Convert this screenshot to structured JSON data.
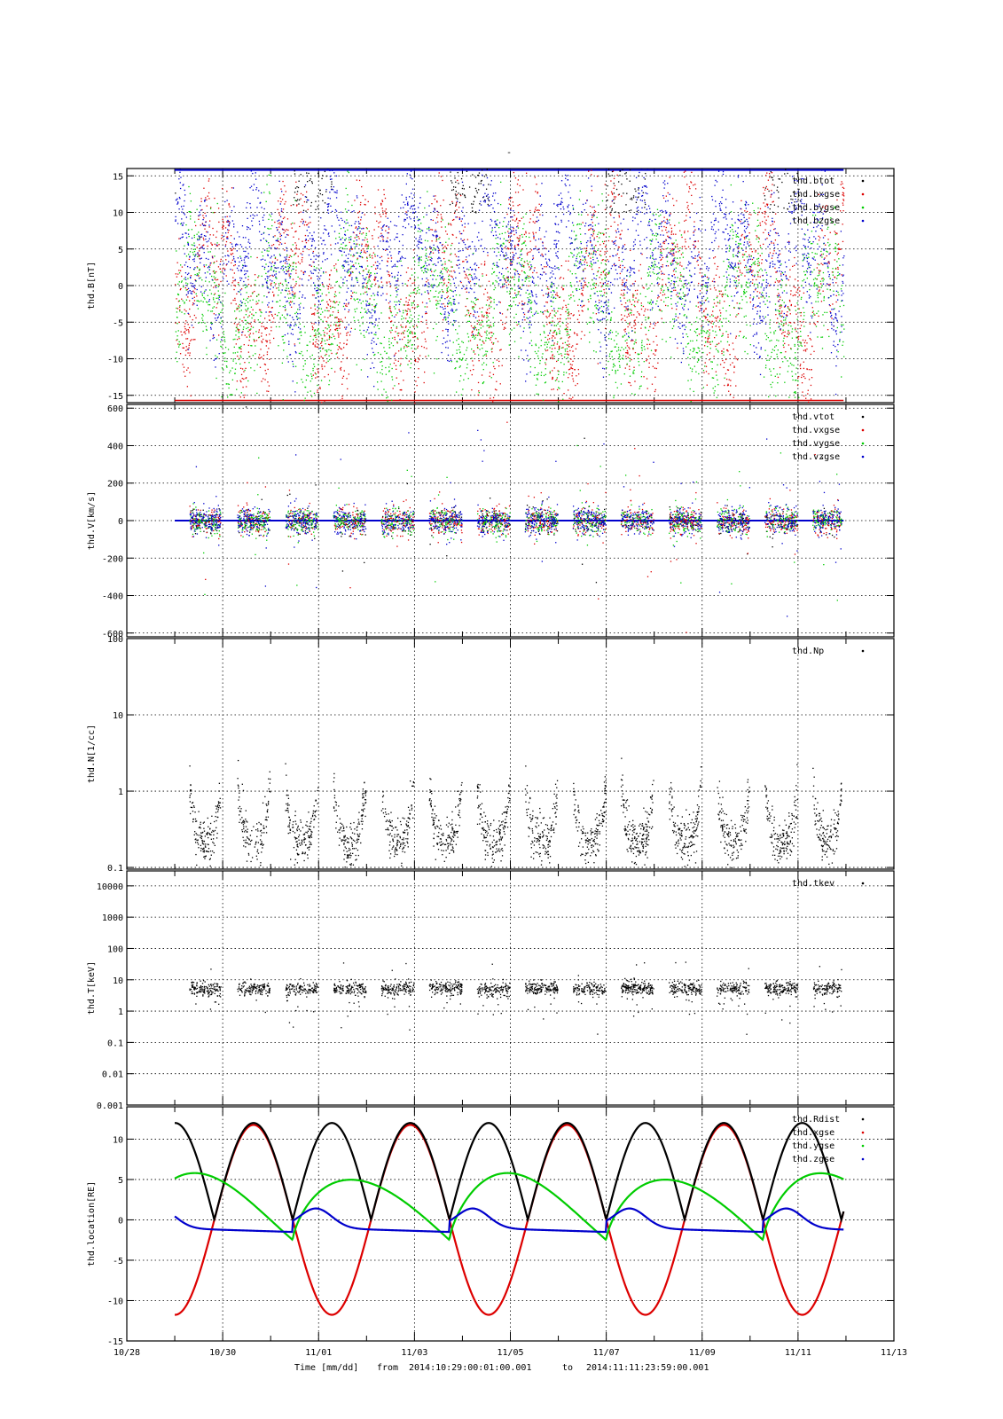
{
  "figure": {
    "title": "-",
    "time_label": "Time [mm/dd]",
    "from_label": "from",
    "from_value": "2014:10:29:00:01:00.001",
    "to_label": "to",
    "to_value": "2014:11:11:23:59:00.001"
  },
  "colors": {
    "black": "#000000",
    "red": "#dd0000",
    "green": "#00cc00",
    "blue": "#0000cc",
    "grid": "#000000"
  },
  "chart_data": [
    {
      "type": "scatter",
      "ylabel": "thd.B[nT]",
      "yscale": "linear",
      "ylim": [
        -16,
        16
      ],
      "yticks": [
        15,
        10,
        5,
        0,
        -5,
        -10,
        -15
      ],
      "ytick_labels": [
        "15",
        "10",
        "5",
        "0",
        "-5",
        "-10",
        "-15"
      ],
      "xlim": [
        "10/28",
        "11/13"
      ],
      "grid": true,
      "legend_position": "top-right",
      "series": [
        {
          "name": "thd.btot",
          "color": "#000000"
        },
        {
          "name": "thd.bxgse",
          "color": "#dd0000"
        },
        {
          "name": "thd.bygse",
          "color": "#00cc00"
        },
        {
          "name": "thd.bzgse",
          "color": "#0000cc"
        }
      ]
    },
    {
      "type": "scatter",
      "ylabel": "thd.V[km/s]",
      "yscale": "linear",
      "ylim": [
        -620,
        620
      ],
      "yticks": [
        600,
        400,
        200,
        0,
        -200,
        -400,
        -600
      ],
      "ytick_labels": [
        "600",
        "400",
        "200",
        "0",
        "-200",
        "-400",
        "-600"
      ],
      "xlim": [
        "10/28",
        "11/13"
      ],
      "grid": true,
      "legend_position": "top-right",
      "series": [
        {
          "name": "thd.vtot",
          "color": "#000000"
        },
        {
          "name": "thd.vxgse",
          "color": "#dd0000"
        },
        {
          "name": "thd.vygse",
          "color": "#00cc00"
        },
        {
          "name": "thd.vzgse",
          "color": "#0000cc"
        }
      ]
    },
    {
      "type": "scatter",
      "ylabel": "thd.N[1/cc]",
      "yscale": "log",
      "ylim": [
        0.095,
        100
      ],
      "yticks": [
        100,
        10,
        1,
        0.1
      ],
      "ytick_labels": [
        "100",
        "10",
        "1",
        "0.1"
      ],
      "xlim": [
        "10/28",
        "11/13"
      ],
      "grid": true,
      "legend_position": "top-right",
      "series": [
        {
          "name": "thd.Np",
          "color": "#000000"
        }
      ]
    },
    {
      "type": "scatter",
      "ylabel": "thd.T[keV]",
      "yscale": "log",
      "ylim": [
        0.001,
        30000
      ],
      "yticks": [
        10000,
        1000,
        100,
        10,
        1,
        0.1,
        0.01,
        0.001
      ],
      "ytick_labels": [
        "10000",
        "1000",
        "100",
        "10",
        "1",
        "0.1",
        "0.01",
        "0.001"
      ],
      "xlim": [
        "10/28",
        "11/13"
      ],
      "grid": true,
      "legend_position": "top-right",
      "series": [
        {
          "name": "thd.tkev",
          "color": "#000000"
        }
      ]
    },
    {
      "type": "line",
      "ylabel": "thd.location[RE]",
      "yscale": "linear",
      "ylim": [
        -15,
        14
      ],
      "yticks": [
        10,
        5,
        0,
        -5,
        -10,
        -15
      ],
      "ytick_labels": [
        "10",
        "5",
        "0",
        "-5",
        "-10",
        "-15"
      ],
      "xlim": [
        "10/28",
        "11/13"
      ],
      "xticks": [
        "10/28",
        "10/30",
        "11/01",
        "11/03",
        "11/05",
        "11/07",
        "11/09",
        "11/11",
        "11/13"
      ],
      "grid": true,
      "legend_position": "top-right",
      "series": [
        {
          "name": "thd.Rdist",
          "color": "#000000",
          "min": 0,
          "max": 12
        },
        {
          "name": "thd.xgse",
          "color": "#dd0000",
          "min": -12,
          "max": 12
        },
        {
          "name": "thd.ygse",
          "color": "#00cc00",
          "min": -2.5,
          "max": 6
        },
        {
          "name": "thd.zgse",
          "color": "#0000cc",
          "min": -1.5,
          "max": 1
        }
      ]
    }
  ]
}
